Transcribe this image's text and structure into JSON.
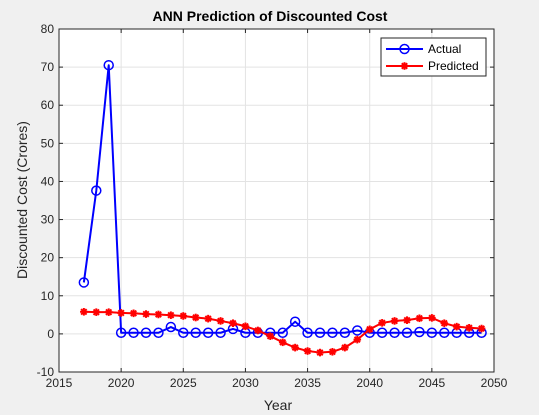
{
  "chart_data": {
    "type": "line",
    "title": "ANN Prediction of Discounted Cost",
    "xlabel": "Year",
    "ylabel": "Discounted Cost (Crores)",
    "xlim": [
      2015,
      2050
    ],
    "ylim": [
      -10,
      80
    ],
    "xticks": [
      2015,
      2020,
      2025,
      2030,
      2035,
      2040,
      2045,
      2050
    ],
    "yticks": [
      -10,
      0,
      10,
      20,
      30,
      40,
      50,
      60,
      70,
      80
    ],
    "grid": true,
    "legend_position": "top-right",
    "x": [
      2017,
      2018,
      2019,
      2020,
      2021,
      2022,
      2023,
      2024,
      2025,
      2026,
      2027,
      2028,
      2029,
      2030,
      2031,
      2032,
      2033,
      2034,
      2035,
      2036,
      2037,
      2038,
      2039,
      2040,
      2041,
      2042,
      2043,
      2044,
      2045,
      2046,
      2047,
      2048,
      2049
    ],
    "series": [
      {
        "name": "Actual",
        "color": "#0000ff",
        "marker": "circle",
        "values": [
          13.5,
          37.6,
          70.5,
          0.3,
          0.3,
          0.3,
          0.3,
          1.8,
          0.3,
          0.3,
          0.3,
          0.3,
          1.3,
          0.3,
          0.3,
          0.3,
          0.3,
          3.2,
          0.3,
          0.3,
          0.3,
          0.3,
          0.9,
          0.3,
          0.3,
          0.3,
          0.3,
          0.5,
          0.3,
          0.3,
          0.3,
          0.3,
          0.3
        ]
      },
      {
        "name": "Predicted",
        "color": "#ff0000",
        "marker": "star",
        "values": [
          5.8,
          5.7,
          5.7,
          5.5,
          5.4,
          5.2,
          5.1,
          4.9,
          4.7,
          4.3,
          4.0,
          3.4,
          2.8,
          2.0,
          0.9,
          -0.6,
          -2.2,
          -3.6,
          -4.5,
          -4.9,
          -4.7,
          -3.6,
          -1.5,
          1.2,
          2.9,
          3.4,
          3.6,
          4.1,
          4.2,
          2.8,
          1.9,
          1.6,
          1.4
        ]
      }
    ]
  }
}
